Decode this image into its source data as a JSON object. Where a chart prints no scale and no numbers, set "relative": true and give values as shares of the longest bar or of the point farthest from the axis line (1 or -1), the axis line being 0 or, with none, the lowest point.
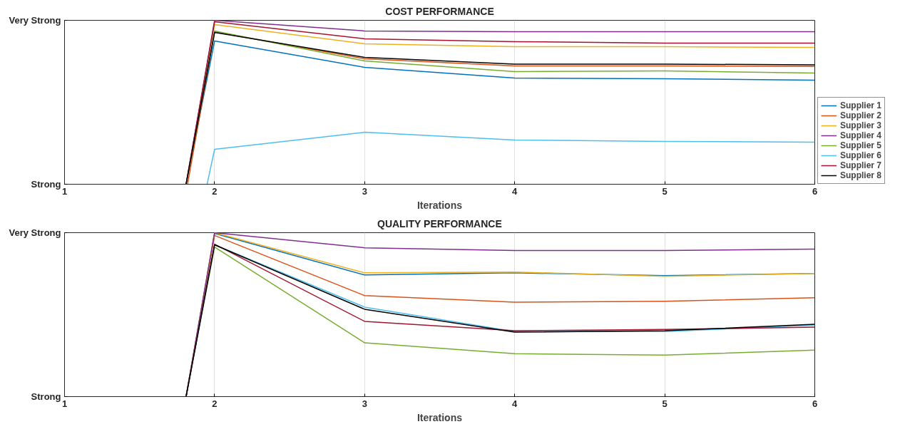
{
  "chart_data": [
    {
      "type": "line",
      "title": "COST PERFORMANCE",
      "xlabel": "Iterations",
      "xlim": [
        1,
        6
      ],
      "xticks": [
        1,
        2,
        3,
        4,
        5,
        6
      ],
      "relative": true,
      "annotations": [
        "Strong",
        "Very Strong"
      ],
      "grid": "x",
      "legend": "right",
      "line_style": "solid",
      "series": [
        {
          "name": "Supplier 1",
          "color": "#0072bd",
          "x": [
            1.81,
            2,
            3,
            4,
            5,
            6
          ],
          "values": [
            0,
            0.874,
            0.713,
            0.648,
            0.643,
            0.635
          ]
        },
        {
          "name": "Supplier 2",
          "color": "#d95319",
          "x": [
            1.82,
            2,
            3,
            4,
            5,
            6
          ],
          "values": [
            0,
            0.93,
            0.765,
            0.722,
            0.722,
            0.718
          ]
        },
        {
          "name": "Supplier 3",
          "color": "#edb120",
          "x": [
            1.81,
            2,
            3,
            4,
            5,
            6
          ],
          "values": [
            0,
            0.974,
            0.857,
            0.839,
            0.839,
            0.835
          ]
        },
        {
          "name": "Supplier 4",
          "color": "#7e2f8e",
          "x": [
            1.81,
            2,
            3,
            4,
            5,
            6
          ],
          "values": [
            0,
            1.0,
            0.935,
            0.93,
            0.93,
            0.93
          ]
        },
        {
          "name": "Supplier 5",
          "color": "#77ac30",
          "x": [
            1.81,
            2,
            3,
            4,
            5,
            6
          ],
          "values": [
            0,
            0.935,
            0.752,
            0.687,
            0.691,
            0.678
          ]
        },
        {
          "name": "Supplier 6",
          "color": "#4dbeee",
          "x": [
            1.95,
            2,
            3,
            4,
            5,
            6
          ],
          "values": [
            0,
            0.213,
            0.317,
            0.27,
            0.261,
            0.257
          ]
        },
        {
          "name": "Supplier 7",
          "color": "#a2142f",
          "x": [
            1.81,
            2,
            3,
            4,
            5,
            6
          ],
          "values": [
            0,
            0.991,
            0.887,
            0.87,
            0.861,
            0.861
          ]
        },
        {
          "name": "Supplier 8",
          "color": "#000000",
          "x": [
            1.81,
            2,
            3,
            4,
            5,
            6
          ],
          "values": [
            0,
            0.926,
            0.774,
            0.733,
            0.733,
            0.728
          ]
        }
      ]
    },
    {
      "type": "line",
      "title": "QUALITY PERFORMANCE",
      "xlabel": "Iterations",
      "xlim": [
        1,
        6
      ],
      "xticks": [
        1,
        2,
        3,
        4,
        5,
        6
      ],
      "relative": true,
      "annotations": [
        "Strong",
        "Very Strong"
      ],
      "grid": "x",
      "line_style": "solid",
      "series": [
        {
          "color": "#0072bd",
          "x": [
            1.81,
            2,
            3,
            4,
            5,
            6
          ],
          "values": [
            0,
            0.996,
            0.742,
            0.755,
            0.738,
            0.751
          ]
        },
        {
          "color": "#d95319",
          "x": [
            1.81,
            2,
            3,
            4,
            5,
            6
          ],
          "values": [
            0,
            0.983,
            0.616,
            0.576,
            0.581,
            0.603
          ]
        },
        {
          "color": "#edb120",
          "x": [
            1.81,
            2,
            3,
            4,
            5,
            6
          ],
          "values": [
            0,
            1.0,
            0.755,
            0.76,
            0.734,
            0.751
          ]
        },
        {
          "color": "#7e2f8e",
          "x": [
            1.81,
            2,
            3,
            4,
            5,
            6
          ],
          "values": [
            0,
            1.0,
            0.908,
            0.891,
            0.891,
            0.9
          ]
        },
        {
          "color": "#77ac30",
          "x": [
            1.81,
            2,
            3,
            4,
            5,
            6
          ],
          "values": [
            0,
            0.913,
            0.328,
            0.262,
            0.253,
            0.284
          ]
        },
        {
          "color": "#4dbeee",
          "x": [
            1.81,
            2,
            3,
            4,
            5,
            6
          ],
          "values": [
            0,
            0.926,
            0.546,
            0.397,
            0.397,
            0.437
          ]
        },
        {
          "color": "#a2142f",
          "x": [
            1.81,
            2,
            3,
            4,
            5,
            6
          ],
          "values": [
            0,
            0.93,
            0.459,
            0.402,
            0.41,
            0.424
          ]
        },
        {
          "color": "#000000",
          "x": [
            1.81,
            2,
            3,
            4,
            5,
            6
          ],
          "values": [
            0,
            0.926,
            0.533,
            0.393,
            0.402,
            0.441
          ]
        }
      ]
    }
  ]
}
